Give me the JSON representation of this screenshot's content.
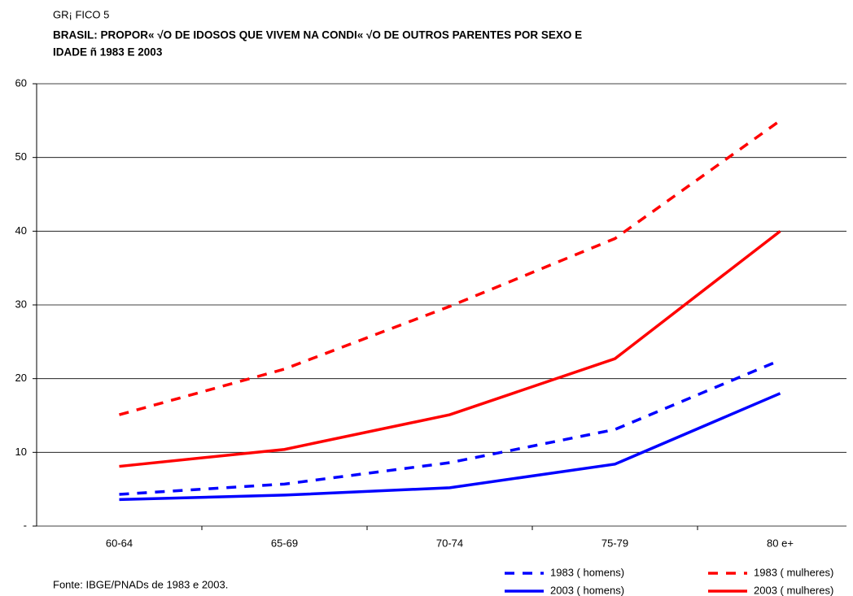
{
  "chart_data": {
    "type": "line",
    "label": "GR¡ FICO 5",
    "title": [
      "BRASIL:  PROPOR« √O DE   IDOSOS  QUE VIVEM NA  CONDI« √O DE   OUTROS  PARENTES  POR SEXO E",
      "IDADE ñ 1983 E 2003"
    ],
    "categories": [
      "60-64",
      "65-69",
      "70-74",
      "75-79",
      "80 e+"
    ],
    "series": [
      {
        "name": "1983 ( homens)",
        "color": "#0000ff",
        "dashed": true,
        "values": [
          4.3,
          5.7,
          8.6,
          13.1,
          22.5
        ]
      },
      {
        "name": "1983 ( mulheres)",
        "color": "#ff0000",
        "dashed": true,
        "values": [
          15.1,
          21.3,
          29.8,
          39.0,
          55.0
        ]
      },
      {
        "name": "2003 ( homens)",
        "color": "#0000ff",
        "dashed": false,
        "values": [
          3.6,
          4.2,
          5.2,
          8.4,
          18.0
        ]
      },
      {
        "name": "2003 ( mulheres)",
        "color": "#ff0000",
        "dashed": false,
        "values": [
          8.1,
          10.4,
          15.1,
          22.7,
          40.0
        ]
      }
    ],
    "ylim": [
      0,
      60
    ],
    "yticks": [
      {
        "value": 0,
        "label": "-"
      },
      10,
      20,
      30,
      40,
      50,
      60
    ],
    "grid": true,
    "source": "Fonte: IBGE/PNADs de 1983 e 2003."
  }
}
